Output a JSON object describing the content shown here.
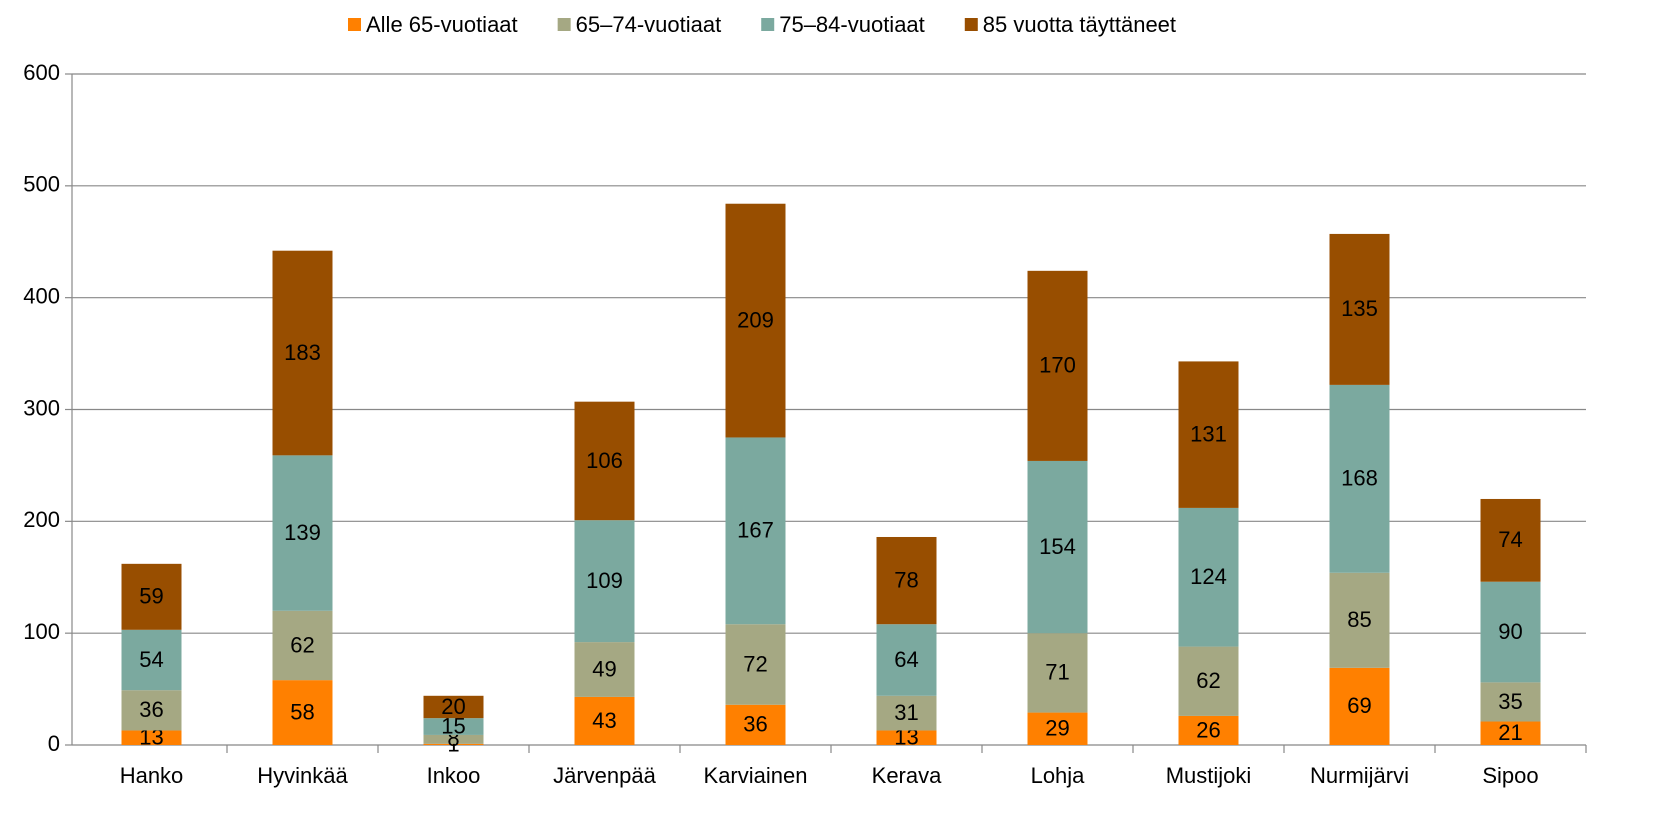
{
  "chart_data": {
    "type": "stacked_bar",
    "categories": [
      "Hanko",
      "Hyvinkää",
      "Inkoo",
      "Järvenpää",
      "Karviainen",
      "Kerava",
      "Lohja",
      "Mustijoki",
      "Nurmijärvi",
      "Sipoo"
    ],
    "series": [
      {
        "name": "Alle 65-vuotiaat",
        "color": "#ff8000",
        "values": [
          13,
          58,
          1,
          43,
          36,
          13,
          29,
          26,
          69,
          21
        ]
      },
      {
        "name": "65–74-vuotiaat",
        "color": "#a5a883",
        "values": [
          36,
          62,
          8,
          49,
          72,
          31,
          71,
          62,
          85,
          35
        ]
      },
      {
        "name": "75–84-vuotiaat",
        "color": "#7ba99f",
        "values": [
          54,
          139,
          15,
          109,
          167,
          64,
          154,
          124,
          168,
          90
        ]
      },
      {
        "name": "85 vuotta täyttäneet",
        "color": "#984e00",
        "values": [
          59,
          183,
          20,
          106,
          209,
          78,
          170,
          131,
          135,
          74
        ]
      }
    ],
    "ylim": [
      0,
      600
    ],
    "yticks": [
      0,
      100,
      200,
      300,
      400,
      500,
      600
    ],
    "grid": true,
    "legend": "top"
  }
}
